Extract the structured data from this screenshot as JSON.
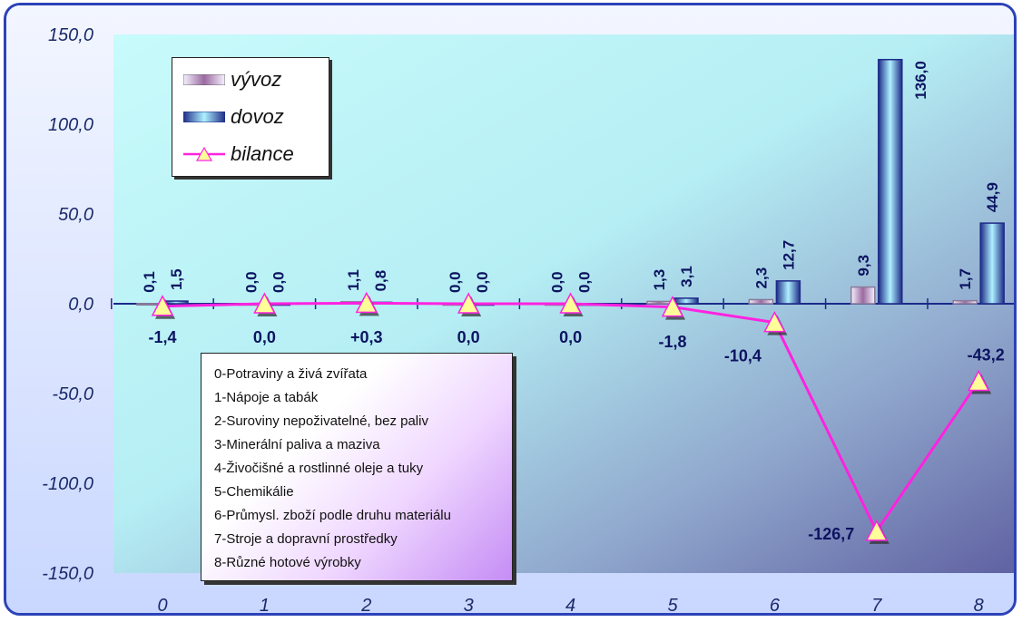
{
  "chart_data": {
    "type": "bar",
    "categories": [
      "0",
      "1",
      "2",
      "3",
      "4",
      "5",
      "6",
      "7",
      "8"
    ],
    "ylim": [
      -150,
      150
    ],
    "y_ticks": [
      "150,0",
      "100,0",
      "50,0",
      "0,0",
      "-50,0",
      "-100,0",
      "-150,0"
    ],
    "y_tick_values": [
      150,
      100,
      50,
      0,
      -50,
      -100,
      -150
    ],
    "grid": false,
    "series": [
      {
        "name": "vývoz",
        "kind": "bar",
        "values": [
          0.1,
          0.0,
          1.1,
          0.0,
          0.0,
          1.3,
          2.3,
          9.3,
          1.7
        ],
        "labels": [
          "0,1",
          "0,0",
          "1,1",
          "0,0",
          "0,0",
          "1,3",
          "2,3",
          "9,3",
          "1,7"
        ],
        "color": "#c9b6d6"
      },
      {
        "name": "dovoz",
        "kind": "bar",
        "values": [
          1.5,
          0.0,
          0.8,
          0.0,
          0.0,
          3.1,
          12.7,
          136.0,
          44.9
        ],
        "labels": [
          "1,5",
          "0,0",
          "0,8",
          "0,0",
          "0,0",
          "3,1",
          "12,7",
          "136,0",
          "44,9"
        ],
        "color": "#2a3ea8"
      },
      {
        "name": "bilance",
        "kind": "line",
        "values": [
          -1.4,
          0.0,
          0.3,
          0.0,
          0.0,
          -1.8,
          -10.4,
          -126.7,
          -43.2
        ],
        "labels": [
          "-1,4",
          "0,0",
          "+0,3",
          "0,0",
          "0,0",
          "-1,8",
          "-10,4",
          "-126,7",
          "-43,2"
        ],
        "color": "#ff22e0"
      }
    ],
    "legend_position": "top-left",
    "category_legend": [
      "0-Potraviny a živá zvířata",
      "1-Nápoje a tabák",
      "2-Suroviny nepoživatelné, bez paliv",
      "3-Minerální paliva a maziva",
      "4-Živočišné a rostlinné oleje a tuky",
      "5-Chemikálie",
      "6-Průmysl. zboží podle druhu materiálu",
      "7-Stroje a dopravní prostředky",
      "8-Různé hotové výrobky"
    ]
  }
}
